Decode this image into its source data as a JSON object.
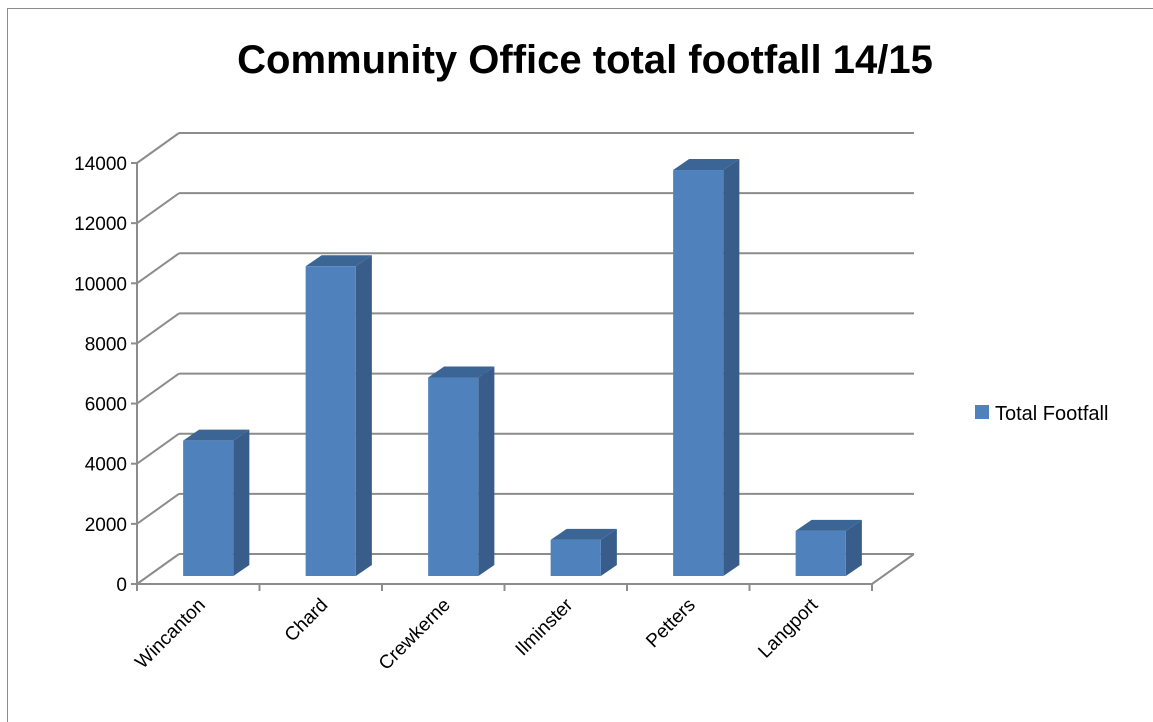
{
  "chart_data": {
    "type": "bar",
    "title": "Community Office total footfall 14/15",
    "categories": [
      "Wincanton",
      "Chard",
      "Crewkerne",
      "Ilminster",
      "Petters",
      "Langport"
    ],
    "series": [
      {
        "name": "Total Footfall",
        "values": [
          4500,
          10300,
          6600,
          1200,
          13500,
          1500
        ],
        "color": "#4f81bd"
      }
    ],
    "ylim": [
      0,
      14000
    ],
    "yticks": [
      "0",
      "2000",
      "4000",
      "6000",
      "8000",
      "10000",
      "12000",
      "14000"
    ],
    "grid": true,
    "legend_position": "right",
    "three_d": true
  }
}
